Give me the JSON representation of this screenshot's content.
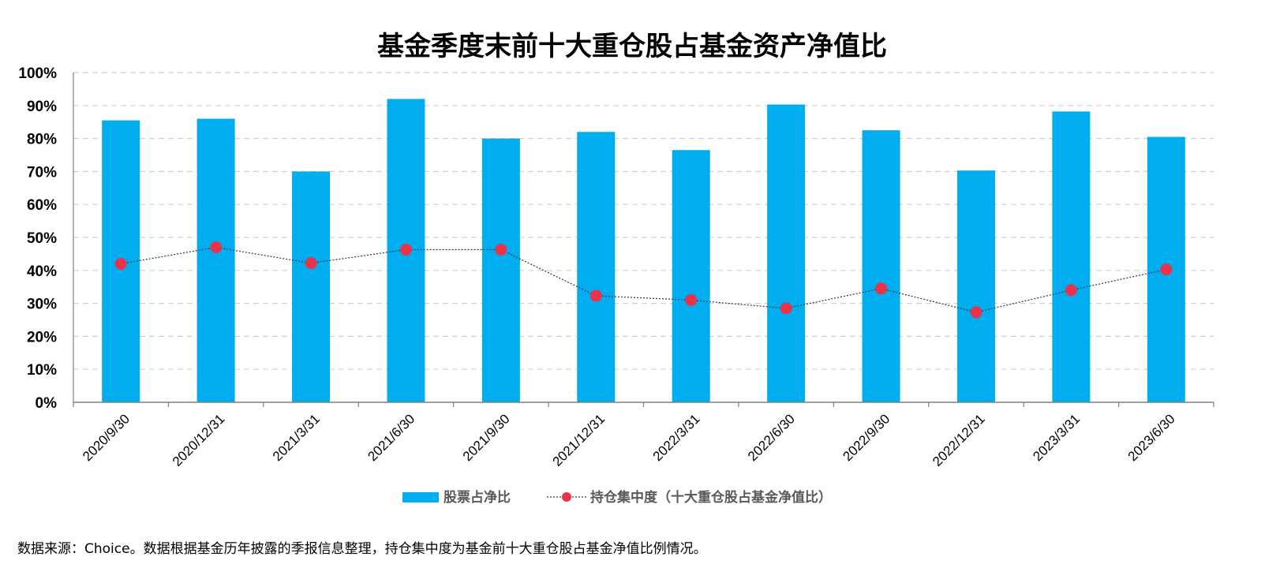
{
  "chart_data": {
    "type": "bar",
    "title": "基金季度末前十大重仓股占基金资产净值比",
    "categories": [
      "2020/9/30",
      "2020/12/31",
      "2021/3/31",
      "2021/6/30",
      "2021/9/30",
      "2021/12/31",
      "2022/3/31",
      "2022/6/30",
      "2022/9/30",
      "2022/12/31",
      "2023/3/31",
      "2023/6/30"
    ],
    "series": [
      {
        "name": "股票占净比",
        "type": "bar",
        "color": "#00AEEF",
        "values": [
          85.5,
          86,
          70,
          92,
          80,
          82,
          76.5,
          90.3,
          82.5,
          70.3,
          88.2,
          80.5
        ]
      },
      {
        "name": "持仓集中度（十大重仓股占基金净值比）",
        "type": "line",
        "color": "#E8334A",
        "line_style": "dotted",
        "values": [
          42,
          47,
          42.2,
          46.3,
          46.3,
          32.3,
          31,
          28.5,
          34.5,
          27.3,
          34,
          40.3
        ]
      }
    ],
    "ylim": [
      0,
      100
    ],
    "yticks": [
      "0%",
      "10%",
      "20%",
      "30%",
      "40%",
      "50%",
      "60%",
      "70%",
      "80%",
      "90%",
      "100%"
    ],
    "grid": true,
    "legend_position": "bottom"
  },
  "footer": {
    "source": "数据来源：Choice。数据根据基金历年披露的季报信息整理，持仓集中度为基金前十大重仓股占基金净值比例情况。"
  }
}
